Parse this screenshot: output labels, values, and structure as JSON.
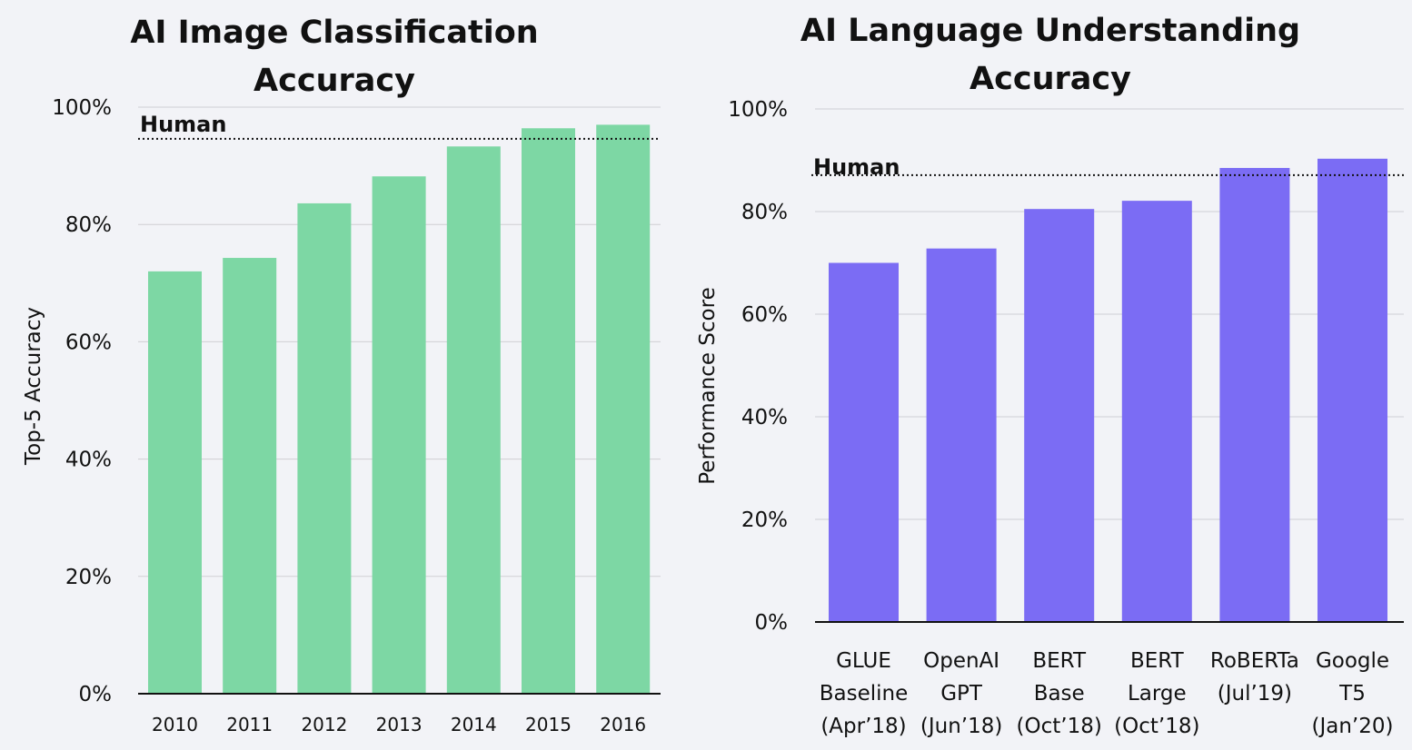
{
  "chart_data": [
    {
      "type": "bar",
      "title": [
        "AI Image Classification",
        "Accuracy"
      ],
      "ylabel": "Top-5 Accuracy",
      "xlabel": "",
      "ylim": [
        0,
        100
      ],
      "yticks": [
        "0%",
        "20%",
        "40%",
        "60%",
        "80%",
        "100%"
      ],
      "ytick_values": [
        0,
        20,
        40,
        60,
        80,
        100
      ],
      "categories": [
        "2010",
        "2011",
        "2012",
        "2013",
        "2014",
        "2015",
        "2016"
      ],
      "values": [
        72,
        74.3,
        83.6,
        88.2,
        93.3,
        96.4,
        97
      ],
      "reference": {
        "label": "Human",
        "value": 94.6
      },
      "color": "#7dd7a4"
    },
    {
      "type": "bar",
      "title": [
        "AI Language Understanding",
        "Accuracy"
      ],
      "ylabel": "Performance Score",
      "xlabel": "",
      "ylim": [
        0,
        100
      ],
      "yticks": [
        "0%",
        "20%",
        "40%",
        "60%",
        "80%",
        "100%"
      ],
      "ytick_values": [
        0,
        20,
        40,
        60,
        80,
        100
      ],
      "categories": [
        [
          "GLUE",
          "Baseline",
          "(Apr’18)"
        ],
        [
          "OpenAI",
          "GPT",
          "(Jun’18)"
        ],
        [
          "BERT",
          "Base",
          "(Oct’18)"
        ],
        [
          "BERT",
          "Large",
          "(Oct’18)"
        ],
        [
          "RoBERTa",
          "(Jul’19)"
        ],
        [
          "Google",
          "T5",
          "(Jan’20)"
        ]
      ],
      "values": [
        70,
        72.8,
        80.5,
        82.1,
        88.5,
        90.3
      ],
      "reference": {
        "label": "Human",
        "value": 87.1
      },
      "color": "#7b6cf4"
    }
  ]
}
